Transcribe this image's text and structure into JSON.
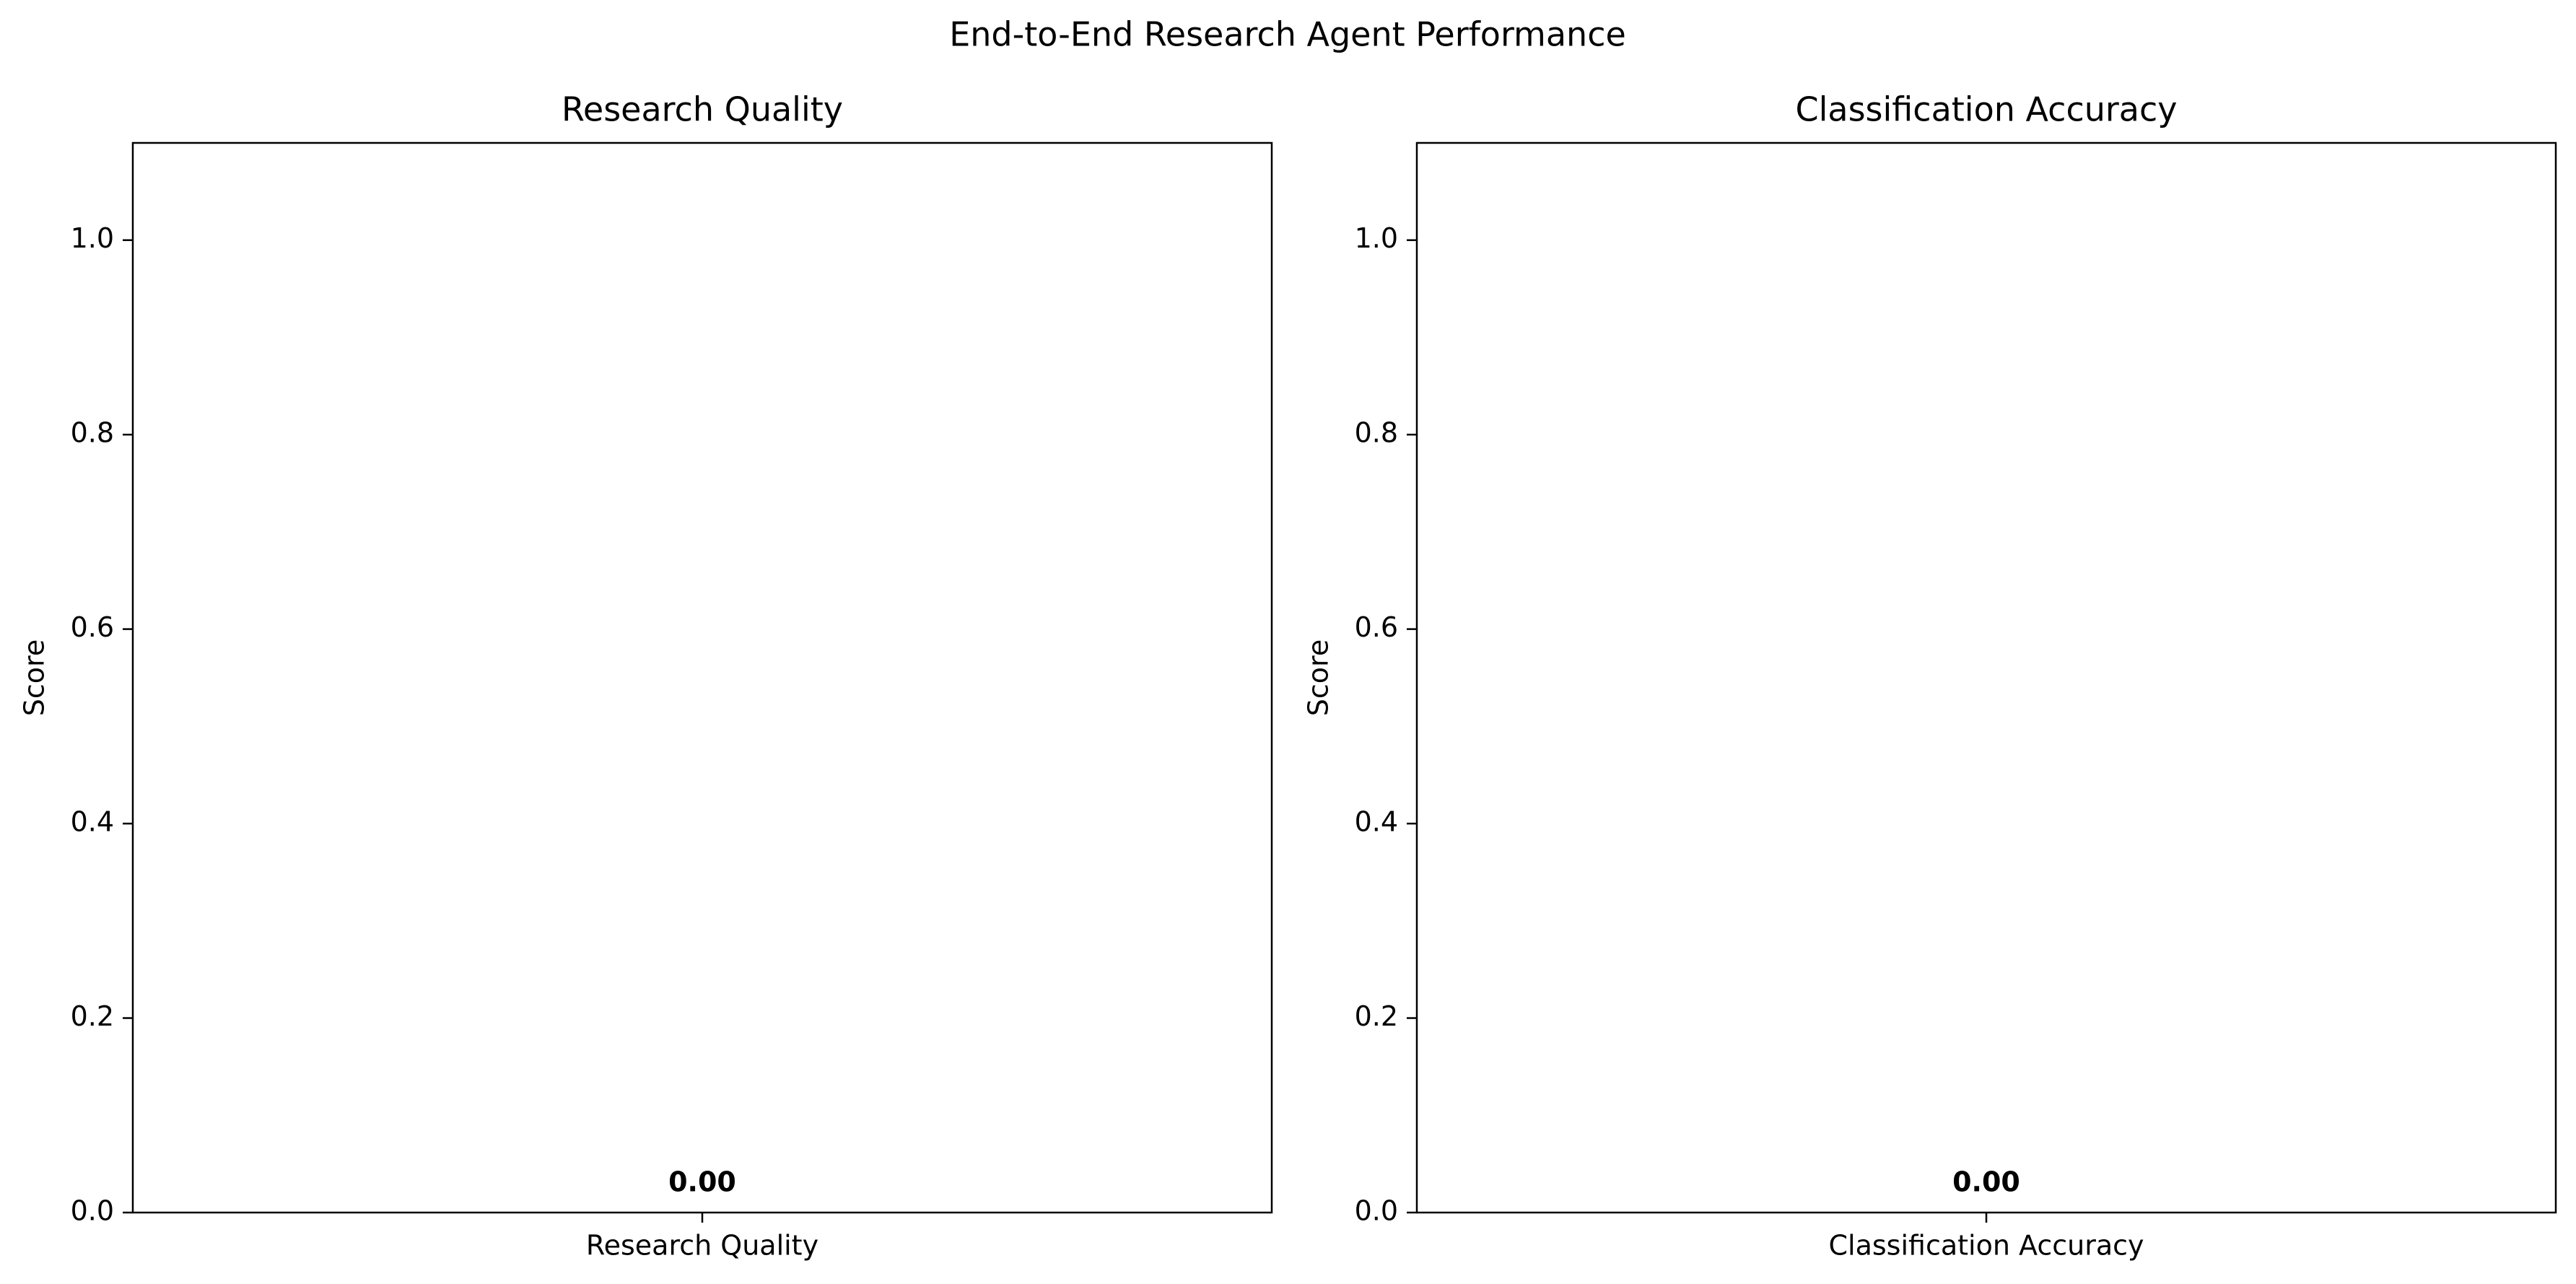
{
  "figure": {
    "suptitle": "End-to-End Research Agent Performance"
  },
  "chart_data": [
    {
      "type": "bar",
      "title": "Research Quality",
      "xlabel": "",
      "ylabel": "Score",
      "ylim": [
        0,
        1.1
      ],
      "yticks": [
        0.0,
        0.2,
        0.4,
        0.6,
        0.8,
        1.0
      ],
      "ytick_labels": [
        "0.0",
        "0.2",
        "0.4",
        "0.6",
        "0.8",
        "1.0"
      ],
      "categories": [
        "Research Quality"
      ],
      "values": [
        0.0
      ],
      "value_labels": [
        "0.00"
      ],
      "grid": false,
      "legend": "none"
    },
    {
      "type": "bar",
      "title": "Classification Accuracy",
      "xlabel": "",
      "ylabel": "Score",
      "ylim": [
        0,
        1.1
      ],
      "yticks": [
        0.0,
        0.2,
        0.4,
        0.6,
        0.8,
        1.0
      ],
      "ytick_labels": [
        "0.0",
        "0.2",
        "0.4",
        "0.6",
        "0.8",
        "1.0"
      ],
      "categories": [
        "Classification Accuracy"
      ],
      "values": [
        0.0
      ],
      "value_labels": [
        "0.00"
      ],
      "grid": false,
      "legend": "none"
    }
  ]
}
